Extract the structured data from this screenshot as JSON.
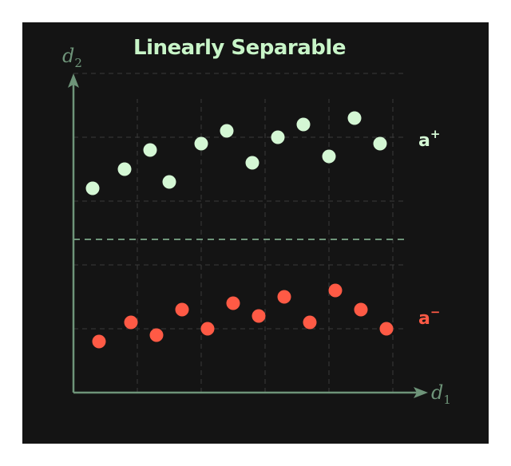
{
  "title": "Linearly Separable",
  "axes": {
    "x_label": "d",
    "x_subscript": "1",
    "y_label": "d",
    "y_subscript": "2"
  },
  "classes": {
    "positive": {
      "label": "a",
      "superscript": "+"
    },
    "negative": {
      "label": "a",
      "superscript": "−"
    }
  },
  "colors": {
    "background": "#141414",
    "axis": "#6e9479",
    "title": "#c8f5c8",
    "positive": "#d4f7d4",
    "negative": "#ff5a45",
    "grid": "#3a3a3a",
    "separator": "#6e9479"
  },
  "chart_data": {
    "type": "scatter",
    "xlim": [
      0,
      10.4
    ],
    "ylim": [
      0,
      10.4
    ],
    "grid": true,
    "separator_y": 4.8,
    "series": [
      {
        "class": "positive",
        "points": [
          [
            0.6,
            6.4
          ],
          [
            1.6,
            7.0
          ],
          [
            2.4,
            7.6
          ],
          [
            3.0,
            6.6
          ],
          [
            4.0,
            7.8
          ],
          [
            4.8,
            8.2
          ],
          [
            5.6,
            7.2
          ],
          [
            6.4,
            8.0
          ],
          [
            7.2,
            8.4
          ],
          [
            8.0,
            7.4
          ],
          [
            8.8,
            8.6
          ],
          [
            9.6,
            7.8
          ]
        ]
      },
      {
        "class": "negative",
        "points": [
          [
            0.8,
            1.6
          ],
          [
            1.8,
            2.2
          ],
          [
            2.6,
            1.8
          ],
          [
            3.4,
            2.6
          ],
          [
            4.2,
            2.0
          ],
          [
            5.0,
            2.8
          ],
          [
            5.8,
            2.4
          ],
          [
            6.6,
            3.0
          ],
          [
            7.4,
            2.2
          ],
          [
            8.2,
            3.2
          ],
          [
            9.0,
            2.6
          ],
          [
            9.8,
            2.0
          ]
        ]
      }
    ]
  }
}
